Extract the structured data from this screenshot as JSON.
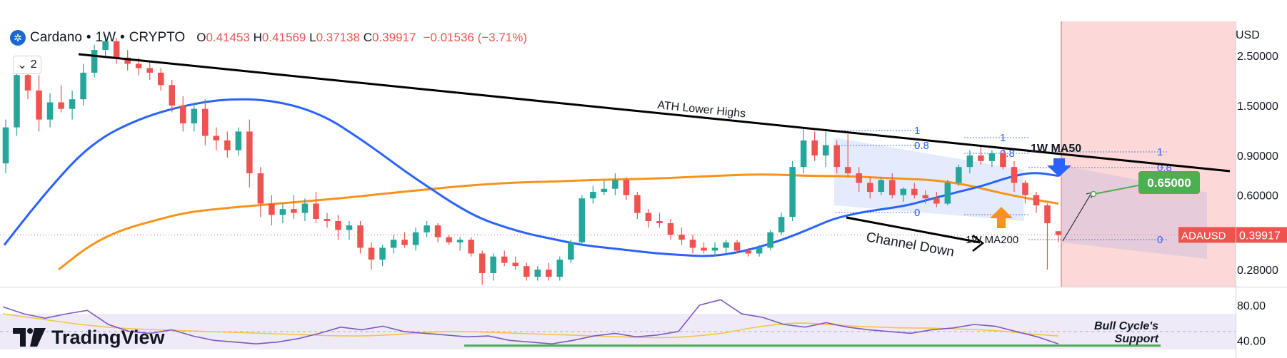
{
  "header": {
    "symbol": "Cardano",
    "interval": "1W",
    "exchange": "CRYPTO",
    "separator": "•",
    "o_label": "O",
    "o_value": "0.41453",
    "h_label": "H",
    "h_value": "0.41569",
    "l_label": "L",
    "l_value": "0.37138",
    "c_label": "C",
    "c_value": "0.39917",
    "change": "−0.01536 (−3.71%)",
    "logo_icon": "cardano-logo-icon"
  },
  "indicator_toggle": {
    "count": "2",
    "icon": "chevron-down-icon"
  },
  "currency": "USD",
  "watermark": {
    "text": "TradingView",
    "icon": "tradingview-logo-icon"
  },
  "price_label": {
    "symbol": "ADAUSD",
    "value": "0.39917"
  },
  "colors": {
    "up": "#26a69a",
    "down": "#ef5350",
    "ma50": "#2962ff",
    "ma200": "#f7931a",
    "rsi": "#7e57c2",
    "rsi_ma": "#f5c542",
    "target": "#4caf50",
    "trendline": "#000000"
  },
  "chart_data": [
    {
      "type": "candlestick",
      "scale": "log",
      "y_ticks": [
        "2.50000",
        "1.50000",
        "0.90000",
        "0.60000",
        "0.28000"
      ],
      "series": [
        {
          "name": "Cardano • 1W • CRYPTO",
          "candles": [
            [
              0.83,
              1.3,
              0.75,
              1.2
            ],
            [
              1.2,
              2.2,
              1.1,
              2.05
            ],
            [
              2.05,
              2.45,
              1.6,
              1.75
            ],
            [
              1.75,
              2.05,
              1.15,
              1.3
            ],
            [
              1.3,
              1.7,
              1.2,
              1.55
            ],
            [
              1.55,
              1.85,
              1.4,
              1.45
            ],
            [
              1.45,
              1.75,
              1.3,
              1.6
            ],
            [
              1.6,
              2.3,
              1.5,
              2.1
            ],
            [
              2.1,
              2.8,
              2.0,
              2.65
            ],
            [
              2.65,
              3.1,
              2.5,
              2.9
            ],
            [
              2.9,
              3.0,
              2.3,
              2.45
            ],
            [
              2.45,
              2.65,
              2.15,
              2.3
            ],
            [
              2.3,
              2.45,
              2.05,
              2.2
            ],
            [
              2.2,
              2.35,
              1.95,
              2.1
            ],
            [
              2.1,
              2.2,
              1.75,
              1.85
            ],
            [
              1.85,
              1.95,
              1.4,
              1.5
            ],
            [
              1.5,
              1.65,
              1.15,
              1.25
            ],
            [
              1.25,
              1.55,
              1.15,
              1.45
            ],
            [
              1.45,
              1.6,
              1.0,
              1.1
            ],
            [
              1.1,
              1.2,
              0.95,
              1.05
            ],
            [
              1.05,
              1.15,
              0.88,
              0.95
            ],
            [
              0.95,
              1.2,
              0.9,
              1.15
            ],
            [
              1.15,
              1.3,
              0.65,
              0.75
            ],
            [
              0.75,
              0.8,
              0.48,
              0.55
            ],
            [
              0.55,
              0.6,
              0.44,
              0.49
            ],
            [
              0.49,
              0.55,
              0.45,
              0.52
            ],
            [
              0.52,
              0.6,
              0.47,
              0.5
            ],
            [
              0.5,
              0.58,
              0.46,
              0.55
            ],
            [
              0.55,
              0.62,
              0.45,
              0.47
            ],
            [
              0.47,
              0.5,
              0.43,
              0.46
            ],
            [
              0.46,
              0.49,
              0.38,
              0.42
            ],
            [
              0.42,
              0.46,
              0.38,
              0.44
            ],
            [
              0.44,
              0.46,
              0.33,
              0.35
            ],
            [
              0.35,
              0.37,
              0.28,
              0.31
            ],
            [
              0.31,
              0.36,
              0.29,
              0.35
            ],
            [
              0.35,
              0.4,
              0.33,
              0.38
            ],
            [
              0.38,
              0.41,
              0.35,
              0.36
            ],
            [
              0.36,
              0.43,
              0.34,
              0.41
            ],
            [
              0.41,
              0.46,
              0.39,
              0.44
            ],
            [
              0.44,
              0.45,
              0.37,
              0.39
            ],
            [
              0.39,
              0.4,
              0.36,
              0.37
            ],
            [
              0.37,
              0.39,
              0.34,
              0.38
            ],
            [
              0.38,
              0.39,
              0.32,
              0.33
            ],
            [
              0.33,
              0.34,
              0.24,
              0.27
            ],
            [
              0.27,
              0.33,
              0.25,
              0.32
            ],
            [
              0.32,
              0.34,
              0.29,
              0.3
            ],
            [
              0.3,
              0.32,
              0.28,
              0.29
            ],
            [
              0.29,
              0.3,
              0.25,
              0.26
            ],
            [
              0.26,
              0.29,
              0.25,
              0.28
            ],
            [
              0.28,
              0.3,
              0.25,
              0.26
            ],
            [
              0.26,
              0.32,
              0.25,
              0.31
            ],
            [
              0.31,
              0.38,
              0.3,
              0.37
            ],
            [
              0.37,
              0.6,
              0.36,
              0.58
            ],
            [
              0.58,
              0.66,
              0.55,
              0.62
            ],
            [
              0.62,
              0.7,
              0.6,
              0.64
            ],
            [
              0.64,
              0.75,
              0.6,
              0.7
            ],
            [
              0.7,
              0.72,
              0.57,
              0.6
            ],
            [
              0.6,
              0.62,
              0.47,
              0.5
            ],
            [
              0.5,
              0.52,
              0.43,
              0.46
            ],
            [
              0.46,
              0.5,
              0.43,
              0.45
            ],
            [
              0.45,
              0.47,
              0.38,
              0.4
            ],
            [
              0.4,
              0.43,
              0.36,
              0.38
            ],
            [
              0.38,
              0.4,
              0.33,
              0.35
            ],
            [
              0.35,
              0.37,
              0.33,
              0.34
            ],
            [
              0.34,
              0.37,
              0.32,
              0.35
            ],
            [
              0.35,
              0.38,
              0.33,
              0.37
            ],
            [
              0.37,
              0.38,
              0.33,
              0.34
            ],
            [
              0.34,
              0.35,
              0.32,
              0.33
            ],
            [
              0.33,
              0.36,
              0.32,
              0.35
            ],
            [
              0.35,
              0.42,
              0.34,
              0.41
            ],
            [
              0.41,
              0.5,
              0.4,
              0.48
            ],
            [
              0.48,
              0.85,
              0.46,
              0.8
            ],
            [
              0.8,
              1.2,
              0.75,
              1.05
            ],
            [
              1.05,
              1.15,
              0.85,
              0.9
            ],
            [
              0.9,
              1.15,
              0.8,
              1.0
            ],
            [
              1.0,
              1.05,
              0.75,
              0.8
            ],
            [
              0.8,
              1.12,
              0.72,
              0.75
            ],
            [
              0.75,
              0.8,
              0.62,
              0.68
            ],
            [
              0.68,
              0.72,
              0.58,
              0.62
            ],
            [
              0.62,
              0.72,
              0.6,
              0.7
            ],
            [
              0.7,
              0.75,
              0.58,
              0.6
            ],
            [
              0.6,
              0.65,
              0.56,
              0.64
            ],
            [
              0.64,
              0.68,
              0.58,
              0.6
            ],
            [
              0.6,
              0.63,
              0.55,
              0.58
            ],
            [
              0.58,
              0.62,
              0.53,
              0.55
            ],
            [
              0.55,
              0.7,
              0.54,
              0.68
            ],
            [
              0.68,
              0.82,
              0.66,
              0.8
            ],
            [
              0.8,
              0.95,
              0.75,
              0.9
            ],
            [
              0.9,
              1.0,
              0.82,
              0.85
            ],
            [
              0.85,
              0.95,
              0.8,
              0.92
            ],
            [
              0.92,
              0.98,
              0.78,
              0.8
            ],
            [
              0.8,
              0.85,
              0.62,
              0.68
            ],
            [
              0.68,
              0.7,
              0.55,
              0.6
            ],
            [
              0.6,
              0.62,
              0.5,
              0.54
            ],
            [
              0.54,
              0.55,
              0.28,
              0.45
            ],
            [
              0.41453,
              0.41569,
              0.37138,
              0.39917
            ]
          ]
        },
        {
          "name": "1W MA50",
          "values": [
            0.36,
            0.5,
            0.68,
            0.9,
            1.1,
            1.25,
            1.38,
            1.48,
            1.56,
            1.6,
            1.6,
            1.55,
            1.45,
            1.3,
            1.1,
            0.92,
            0.76,
            0.64,
            0.54,
            0.47,
            0.43,
            0.4,
            0.38,
            0.36,
            0.35,
            0.34,
            0.33,
            0.325,
            0.32,
            0.33,
            0.35,
            0.38,
            0.42,
            0.47,
            0.5,
            0.52,
            0.54,
            0.58,
            0.62,
            0.66,
            0.72,
            0.76,
            0.73
          ]
        },
        {
          "name": "1W MA200",
          "values": [
            0.28,
            0.36,
            0.42,
            0.46,
            0.5,
            0.52,
            0.535,
            0.55,
            0.565,
            0.58,
            0.6,
            0.62,
            0.64,
            0.66,
            0.675,
            0.685,
            0.69,
            0.7,
            0.705,
            0.71,
            0.72,
            0.73,
            0.74,
            0.74,
            0.73,
            0.73,
            0.72,
            0.71,
            0.7,
            0.67,
            0.62,
            0.58,
            0.55
          ]
        },
        {
          "name": "RSI",
          "values": [
            78,
            70,
            65,
            70,
            74,
            58,
            50,
            48,
            52,
            45,
            40,
            38,
            36,
            38,
            42,
            48,
            55,
            52,
            56,
            50,
            48,
            46,
            44,
            45,
            40,
            38,
            36,
            40,
            45,
            48,
            44,
            46,
            50,
            80,
            86,
            70,
            66,
            58,
            55,
            60,
            55,
            52,
            50,
            48,
            52,
            54,
            58,
            56,
            50,
            44,
            36
          ]
        },
        {
          "name": "RSI MA",
          "values": [
            70,
            66,
            62,
            58,
            55,
            53,
            52,
            51,
            50,
            49,
            48,
            47,
            46,
            45,
            45,
            46,
            48,
            50,
            50,
            49,
            48,
            47,
            46,
            45,
            44,
            43,
            43,
            45,
            48,
            54,
            58,
            60,
            58,
            56,
            55,
            54,
            54,
            53,
            52,
            50,
            47,
            45
          ]
        }
      ],
      "annotations": {
        "trendline_label": "ATH Lower Highs",
        "channel_label": "Channel Down",
        "ma50_label": "1W MA50",
        "ma200_label": "1W MA200",
        "target_value": "0.65000",
        "fib_labels": [
          "1",
          "0.8",
          "0",
          "1",
          "0.8",
          "0",
          "1",
          "0.8",
          "0"
        ]
      }
    },
    {
      "type": "line",
      "y_ticks": [
        "80.00",
        "40.00"
      ],
      "annotations": {
        "support_label_1": "Bull Cycle's",
        "support_label_2": "Support"
      }
    }
  ]
}
